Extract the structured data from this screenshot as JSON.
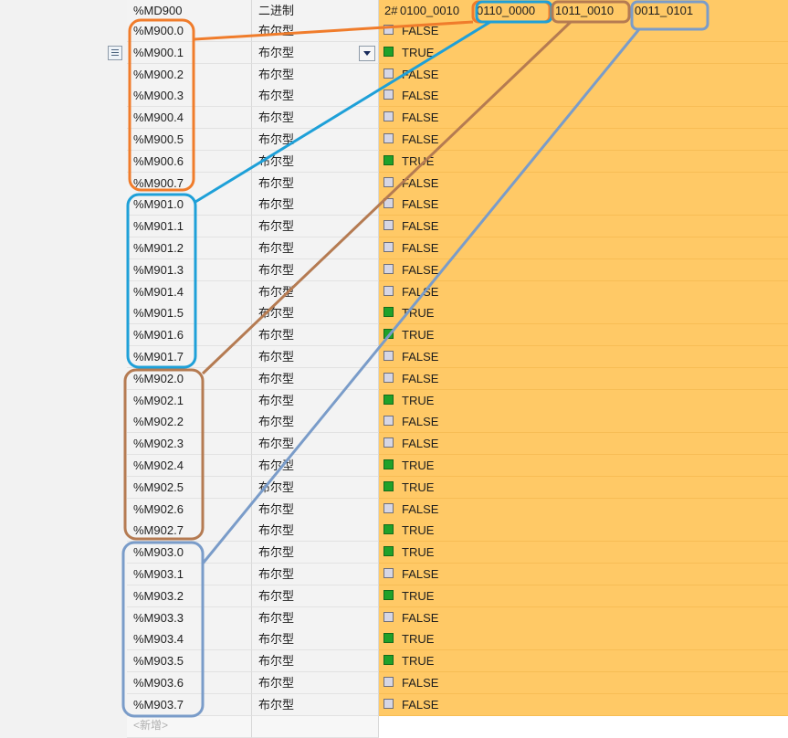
{
  "header": {
    "address": "%MD900",
    "type": "二进制",
    "value_prefix": "2#",
    "value_bytes": [
      "0100_0010",
      "0110_0000",
      "1011_0010",
      "0011_0101"
    ]
  },
  "rows": [
    {
      "address": "%M900.0",
      "type": "布尔型",
      "value": "FALSE"
    },
    {
      "address": "%M900.1",
      "type": "布尔型",
      "value": "TRUE"
    },
    {
      "address": "%M900.2",
      "type": "布尔型",
      "value": "FALSE"
    },
    {
      "address": "%M900.3",
      "type": "布尔型",
      "value": "FALSE"
    },
    {
      "address": "%M900.4",
      "type": "布尔型",
      "value": "FALSE"
    },
    {
      "address": "%M900.5",
      "type": "布尔型",
      "value": "FALSE"
    },
    {
      "address": "%M900.6",
      "type": "布尔型",
      "value": "TRUE"
    },
    {
      "address": "%M900.7",
      "type": "布尔型",
      "value": "FALSE"
    },
    {
      "address": "%M901.0",
      "type": "布尔型",
      "value": "FALSE"
    },
    {
      "address": "%M901.1",
      "type": "布尔型",
      "value": "FALSE"
    },
    {
      "address": "%M901.2",
      "type": "布尔型",
      "value": "FALSE"
    },
    {
      "address": "%M901.3",
      "type": "布尔型",
      "value": "FALSE"
    },
    {
      "address": "%M901.4",
      "type": "布尔型",
      "value": "FALSE"
    },
    {
      "address": "%M901.5",
      "type": "布尔型",
      "value": "TRUE"
    },
    {
      "address": "%M901.6",
      "type": "布尔型",
      "value": "TRUE"
    },
    {
      "address": "%M901.7",
      "type": "布尔型",
      "value": "FALSE"
    },
    {
      "address": "%M902.0",
      "type": "布尔型",
      "value": "FALSE"
    },
    {
      "address": "%M902.1",
      "type": "布尔型",
      "value": "TRUE"
    },
    {
      "address": "%M902.2",
      "type": "布尔型",
      "value": "FALSE"
    },
    {
      "address": "%M902.3",
      "type": "布尔型",
      "value": "FALSE"
    },
    {
      "address": "%M902.4",
      "type": "布尔型",
      "value": "TRUE"
    },
    {
      "address": "%M902.5",
      "type": "布尔型",
      "value": "TRUE"
    },
    {
      "address": "%M902.6",
      "type": "布尔型",
      "value": "FALSE"
    },
    {
      "address": "%M902.7",
      "type": "布尔型",
      "value": "TRUE"
    },
    {
      "address": "%M903.0",
      "type": "布尔型",
      "value": "TRUE"
    },
    {
      "address": "%M903.1",
      "type": "布尔型",
      "value": "FALSE"
    },
    {
      "address": "%M903.2",
      "type": "布尔型",
      "value": "TRUE"
    },
    {
      "address": "%M903.3",
      "type": "布尔型",
      "value": "FALSE"
    },
    {
      "address": "%M903.4",
      "type": "布尔型",
      "value": "TRUE"
    },
    {
      "address": "%M903.5",
      "type": "布尔型",
      "value": "TRUE"
    },
    {
      "address": "%M903.6",
      "type": "布尔型",
      "value": "FALSE"
    },
    {
      "address": "%M903.7",
      "type": "布尔型",
      "value": "FALSE"
    }
  ],
  "footer_row": {
    "address": "<新增>"
  },
  "icons": {
    "row_options": "list-icon",
    "format_dropdown": "chevron-down-icon"
  },
  "annotation_colors": [
    "#f07c2b",
    "#1ea0d8",
    "#b57b52",
    "#7a9cc9"
  ],
  "colors": {
    "value_bg": "#ffc966",
    "true_check": "#1fa12a",
    "false_check": "#d6d6e4"
  }
}
